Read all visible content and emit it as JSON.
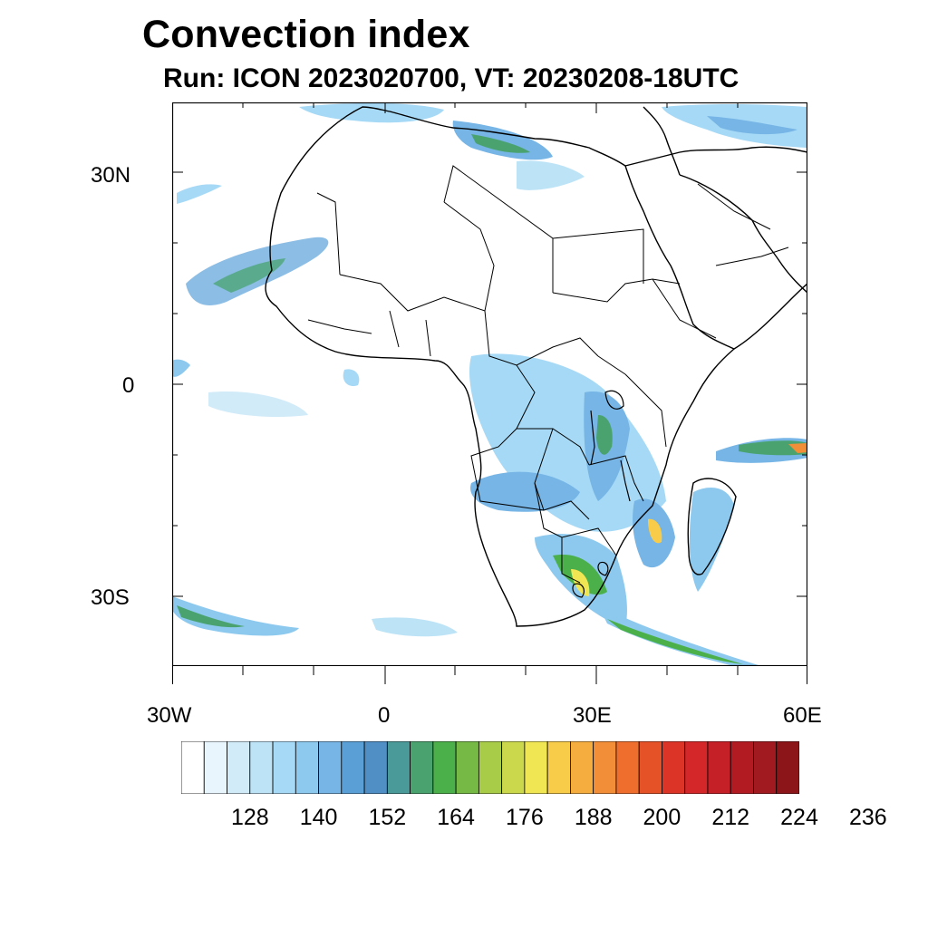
{
  "title": "Convection index",
  "subtitle": "Run: ICON 2023020700,  VT: 20230208-18UTC",
  "y_axis_labels": [
    "30N",
    "0",
    "30S"
  ],
  "x_axis_labels": [
    "30W",
    "0",
    "30E",
    "60E"
  ],
  "colorbar": {
    "tick_labels": [
      "128",
      "140",
      "152",
      "164",
      "176",
      "188",
      "200",
      "212",
      "224",
      "236"
    ],
    "colors": [
      "#ffffff",
      "#e9f5fc",
      "#d2ebf8",
      "#bde3f6",
      "#a6d9f6",
      "#8dc9ee",
      "#76b5e5",
      "#5b9fd7",
      "#4f8fc6",
      "#4b9a9a",
      "#4aa36e",
      "#4bb04a",
      "#76ba45",
      "#a8cc48",
      "#ccd84c",
      "#f0e653",
      "#f8cc48",
      "#f6ad3f",
      "#f38e38",
      "#ef6e2e",
      "#e55228",
      "#dc3527",
      "#d42729",
      "#c51f27",
      "#b31b23",
      "#a11a1f",
      "#8b1518"
    ]
  },
  "map": {
    "region": "Africa",
    "lon_range": [
      -30,
      60
    ],
    "lat_range": [
      -40,
      40
    ],
    "lon_ticks_deg": [
      -30,
      0,
      30,
      60
    ],
    "lat_ticks_deg": [
      30,
      0,
      -30
    ]
  }
}
